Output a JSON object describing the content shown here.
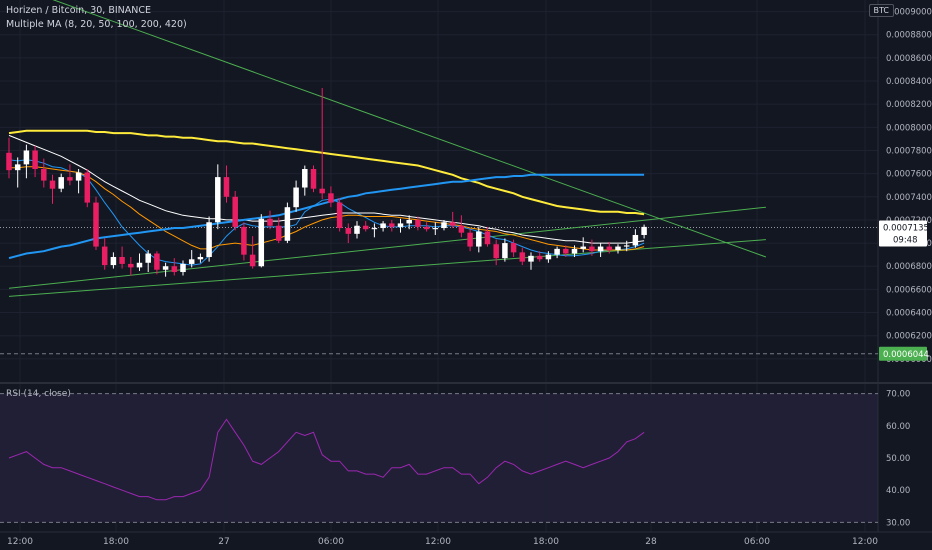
{
  "header": {
    "symbol_line": "Horizen / Bitcoin, 30, BINANCE",
    "indicator_line": "Multiple MA (8, 20, 50, 100, 200, 420)",
    "rsi_label": "RSI (14, close)",
    "currency": "BTC"
  },
  "chart_data": {
    "type": "candlestick",
    "symbol": "Horizen / Bitcoin",
    "interval": "30",
    "exchange": "BINANCE",
    "price_axis": {
      "ticks": [
        "0.0009000",
        "0.0008800",
        "0.0008600",
        "0.0008400",
        "0.0008200",
        "0.0008000",
        "0.0007800",
        "0.0007600",
        "0.0007400",
        "0.0007200",
        "0.0007000",
        "0.0006800",
        "0.0006600",
        "0.0006400",
        "0.0006200",
        "0.0006000"
      ],
      "range": [
        0.00058,
        0.00091
      ]
    },
    "time_axis": {
      "ticks": [
        "12:00",
        "18:00",
        "27",
        "06:00",
        "12:00",
        "18:00",
        "28",
        "06:00",
        "12:00"
      ]
    },
    "last_price": "0.0007135",
    "countdown": "09:48",
    "marked_level": "0.0006044",
    "candles": [
      [
        0.000778,
        0.000791,
        0.000756,
        0.000763
      ],
      [
        0.000763,
        0.000774,
        0.000748,
        0.000768
      ],
      [
        0.000768,
        0.000785,
        0.000756,
        0.00078
      ],
      [
        0.00078,
        0.000784,
        0.000757,
        0.000764
      ],
      [
        0.000764,
        0.000773,
        0.000748,
        0.000754
      ],
      [
        0.000754,
        0.000759,
        0.000734,
        0.000747
      ],
      [
        0.000747,
        0.00076,
        0.000744,
        0.000757
      ],
      [
        0.000757,
        0.000768,
        0.00075,
        0.000754
      ],
      [
        0.000754,
        0.000764,
        0.000743,
        0.000761
      ],
      [
        0.000761,
        0.000764,
        0.000731,
        0.000735
      ],
      [
        0.000735,
        0.00074,
        0.000694,
        0.000697
      ],
      [
        0.000697,
        0.000704,
        0.000677,
        0.000681
      ],
      [
        0.000681,
        0.000692,
        0.000678,
        0.000688
      ],
      [
        0.000688,
        0.000697,
        0.000678,
        0.000682
      ],
      [
        0.000682,
        0.000688,
        0.000672,
        0.000679
      ],
      [
        0.000679,
        0.000691,
        0.000676,
        0.000683
      ],
      [
        0.000683,
        0.000694,
        0.000675,
        0.000691
      ],
      [
        0.000691,
        0.000693,
        0.000673,
        0.000677
      ],
      [
        0.000677,
        0.000683,
        0.000671,
        0.00068
      ],
      [
        0.00068,
        0.000687,
        0.000672,
        0.000675
      ],
      [
        0.000675,
        0.000685,
        0.000672,
        0.000682
      ],
      [
        0.000682,
        0.000694,
        0.000679,
        0.000686
      ],
      [
        0.000686,
        0.000691,
        0.000683,
        0.000688
      ],
      [
        0.000688,
        0.000723,
        0.000684,
        0.000718
      ],
      [
        0.000718,
        0.000768,
        0.000712,
        0.000757
      ],
      [
        0.000757,
        0.000767,
        0.000735,
        0.00074
      ],
      [
        0.00074,
        0.000745,
        0.000711,
        0.000714
      ],
      [
        0.000714,
        0.000718,
        0.000685,
        0.00069
      ],
      [
        0.00069,
        0.000706,
        0.000678,
        0.00068
      ],
      [
        0.00068,
        0.000725,
        0.000679,
        0.000721
      ],
      [
        0.000721,
        0.000728,
        0.000712,
        0.000715
      ],
      [
        0.000715,
        0.000722,
        0.0007,
        0.000702
      ],
      [
        0.000702,
        0.000735,
        0.0007,
        0.000731
      ],
      [
        0.000731,
        0.000754,
        0.000727,
        0.000748
      ],
      [
        0.000748,
        0.000767,
        0.000741,
        0.000764
      ],
      [
        0.000764,
        0.000767,
        0.000744,
        0.000747
      ],
      [
        0.000747,
        0.000834,
        0.000738,
        0.000743
      ],
      [
        0.000743,
        0.000749,
        0.000731,
        0.000735
      ],
      [
        0.000735,
        0.000739,
        0.00071,
        0.000713
      ],
      [
        0.000713,
        0.000717,
        0.0007,
        0.000708
      ],
      [
        0.000708,
        0.000719,
        0.000704,
        0.000715
      ],
      [
        0.000715,
        0.000719,
        0.00071,
        0.000712
      ],
      [
        0.000712,
        0.000717,
        0.000705,
        0.000713
      ],
      [
        0.000713,
        0.000719,
        0.00071,
        0.000717
      ],
      [
        0.000717,
        0.00072,
        0.00071,
        0.000714
      ],
      [
        0.000714,
        0.000721,
        0.000709,
        0.000717
      ],
      [
        0.000717,
        0.000724,
        0.000712,
        0.00072
      ],
      [
        0.00072,
        0.000723,
        0.000711,
        0.000714
      ],
      [
        0.000714,
        0.000718,
        0.00071,
        0.000712
      ],
      [
        0.000712,
        0.000718,
        0.000707,
        0.000713
      ],
      [
        0.000713,
        0.00072,
        0.000711,
        0.000718
      ],
      [
        0.000718,
        0.000727,
        0.000713,
        0.000715
      ],
      [
        0.000715,
        0.000724,
        0.000705,
        0.000709
      ],
      [
        0.000709,
        0.000712,
        0.000693,
        0.000697
      ],
      [
        0.000697,
        0.000714,
        0.000692,
        0.00071
      ],
      [
        0.00071,
        0.000714,
        0.000697,
        0.000699
      ],
      [
        0.000699,
        0.000703,
        0.000681,
        0.000687
      ],
      [
        0.000687,
        0.000704,
        0.000684,
        0.0007
      ],
      [
        0.0007,
        0.000703,
        0.000688,
        0.000692
      ],
      [
        0.000692,
        0.000696,
        0.000681,
        0.000684
      ],
      [
        0.000684,
        0.000692,
        0.000677,
        0.000689
      ],
      [
        0.000689,
        0.000693,
        0.000684,
        0.000686
      ],
      [
        0.000686,
        0.000693,
        0.000683,
        0.00069
      ],
      [
        0.00069,
        0.000697,
        0.000687,
        0.000695
      ],
      [
        0.000695,
        0.000698,
        0.000688,
        0.000691
      ],
      [
        0.000691,
        0.000698,
        0.000688,
        0.000695
      ],
      [
        0.000695,
        0.000705,
        0.000692,
        0.000697
      ],
      [
        0.000697,
        0.000703,
        0.000689,
        0.000693
      ],
      [
        0.000693,
        0.0007,
        0.000688,
        0.000697
      ],
      [
        0.000697,
        0.000701,
        0.000691,
        0.000694
      ],
      [
        0.000694,
        0.000699,
        0.000691,
        0.000697
      ],
      [
        0.000697,
        0.000702,
        0.000693,
        0.000698
      ],
      [
        0.000698,
        0.000712,
        0.000696,
        0.000707
      ],
      [
        0.000707,
        0.000716,
        0.000704,
        0.000714
      ]
    ],
    "moving_averages": [
      {
        "period": 8,
        "color": "#2196f3",
        "values": [
          0.000772,
          0.000771,
          0.000772,
          0.000771,
          0.000769,
          0.000766,
          0.000765,
          0.000762,
          0.000761,
          0.000756,
          0.000746,
          0.000735,
          0.000725,
          0.000714,
          0.000706,
          0.000698,
          0.000691,
          0.000686,
          0.000684,
          0.000683,
          0.000682,
          0.000681,
          0.000682,
          0.000689,
          0.000697,
          0.000706,
          0.000713,
          0.000717,
          0.000715,
          0.000714,
          0.000714,
          0.000714,
          0.000714,
          0.000716,
          0.000727,
          0.000732,
          0.000737,
          0.000738,
          0.000735,
          0.00073,
          0.000726,
          0.000722,
          0.000718,
          0.000715,
          0.000714,
          0.000714,
          0.000715,
          0.000715,
          0.000715,
          0.000714,
          0.000715,
          0.000715,
          0.000714,
          0.000712,
          0.00071,
          0.000707,
          0.000704,
          0.000703,
          0.0007,
          0.000697,
          0.000694,
          0.000692,
          0.000691,
          0.00069,
          0.000689,
          0.000689,
          0.00069,
          0.000691,
          0.000693,
          0.000694,
          0.000694,
          0.000695,
          0.000697,
          0.0007
        ]
      },
      {
        "period": 20,
        "color": "#ff9800",
        "values": [
          0.000765,
          0.000765,
          0.000766,
          0.000766,
          0.000765,
          0.000764,
          0.000763,
          0.000762,
          0.000761,
          0.000758,
          0.000753,
          0.000747,
          0.000742,
          0.000736,
          0.000731,
          0.000725,
          0.00072,
          0.000715,
          0.00071,
          0.000706,
          0.000702,
          0.000698,
          0.000695,
          0.000695,
          0.000698,
          0.000699,
          0.0007,
          0.000699,
          0.000698,
          0.0007,
          0.000702,
          0.000704,
          0.000707,
          0.00071,
          0.000714,
          0.000717,
          0.00072,
          0.000722,
          0.000723,
          0.000724,
          0.000724,
          0.000723,
          0.000723,
          0.000723,
          0.000723,
          0.000722,
          0.000721,
          0.00072,
          0.000719,
          0.000718,
          0.000717,
          0.000716,
          0.000715,
          0.000713,
          0.000712,
          0.000711,
          0.00071,
          0.000708,
          0.000707,
          0.000705,
          0.000703,
          0.000701,
          0.000699,
          0.000698,
          0.000697,
          0.000696,
          0.000695,
          0.000694,
          0.000694,
          0.000694,
          0.000694,
          0.000694,
          0.000695,
          0.000697
        ]
      },
      {
        "period": 50,
        "color": "#ffffff",
        "values": [
          0.000793,
          0.00079,
          0.000787,
          0.000784,
          0.000781,
          0.000778,
          0.000775,
          0.000771,
          0.000767,
          0.000763,
          0.000758,
          0.000753,
          0.000749,
          0.000745,
          0.000741,
          0.000737,
          0.000734,
          0.000731,
          0.000728,
          0.000726,
          0.000724,
          0.000723,
          0.000722,
          0.000721,
          0.000721,
          0.00072,
          0.00072,
          0.00072,
          0.000719,
          0.000719,
          0.000719,
          0.000719,
          0.00072,
          0.000721,
          0.000722,
          0.000723,
          0.000724,
          0.000725,
          0.000726,
          0.000726,
          0.000726,
          0.000726,
          0.000726,
          0.000725,
          0.000724,
          0.000724,
          0.000723,
          0.000722,
          0.000721,
          0.00072,
          0.000719,
          0.000718,
          0.000717,
          0.000716,
          0.000715,
          0.000713,
          0.000712,
          0.00071,
          0.000709,
          0.000707,
          0.000706,
          0.000705,
          0.000704,
          0.000703,
          0.000702,
          0.000702,
          0.000701,
          0.0007,
          0.0007,
          0.0007,
          0.0007,
          0.0007,
          0.000701,
          0.000702
        ]
      },
      {
        "period": 100,
        "color": "#ffeb3b",
        "values": [
          0.000795,
          0.000796,
          0.000797,
          0.000797,
          0.000797,
          0.000797,
          0.000797,
          0.000797,
          0.000797,
          0.000797,
          0.000796,
          0.000796,
          0.000795,
          0.000795,
          0.000795,
          0.000794,
          0.000793,
          0.000793,
          0.000792,
          0.000792,
          0.000791,
          0.000791,
          0.00079,
          0.000789,
          0.000788,
          0.000788,
          0.000787,
          0.000786,
          0.000786,
          0.000785,
          0.000784,
          0.000783,
          0.000782,
          0.000781,
          0.00078,
          0.000779,
          0.000778,
          0.000777,
          0.000776,
          0.000775,
          0.000774,
          0.000773,
          0.000772,
          0.000771,
          0.00077,
          0.000769,
          0.000768,
          0.000767,
          0.000765,
          0.000763,
          0.000761,
          0.000759,
          0.000756,
          0.000754,
          0.000752,
          0.000749,
          0.000747,
          0.000745,
          0.000743,
          0.00074,
          0.000738,
          0.000736,
          0.000734,
          0.000732,
          0.000731,
          0.00073,
          0.000729,
          0.000728,
          0.000727,
          0.000727,
          0.000727,
          0.000726,
          0.000726,
          0.000725
        ]
      },
      {
        "period": 200,
        "color": "#2196f3",
        "values": [
          0.000687,
          0.000689,
          0.000691,
          0.000692,
          0.000693,
          0.000695,
          0.000697,
          0.000698,
          0.0007,
          0.000702,
          0.000704,
          0.000705,
          0.000706,
          0.000707,
          0.000708,
          0.000709,
          0.00071,
          0.000711,
          0.000712,
          0.000713,
          0.000713,
          0.000714,
          0.000715,
          0.000716,
          0.000717,
          0.000718,
          0.000719,
          0.00072,
          0.000721,
          0.000722,
          0.000723,
          0.000724,
          0.000726,
          0.000728,
          0.00073,
          0.000732,
          0.000734,
          0.000736,
          0.000738,
          0.00074,
          0.000741,
          0.000743,
          0.000744,
          0.000745,
          0.000746,
          0.000747,
          0.000748,
          0.000749,
          0.00075,
          0.000751,
          0.000752,
          0.000753,
          0.000753,
          0.000754,
          0.000755,
          0.000756,
          0.000757,
          0.000757,
          0.000758,
          0.000758,
          0.000759,
          0.000759,
          0.000759,
          0.000759,
          0.000759,
          0.000759,
          0.000759,
          0.000759,
          0.000759,
          0.000759,
          0.000759,
          0.000759,
          0.000759,
          0.000759
        ]
      }
    ],
    "trendlines": [
      {
        "name": "descending-resistance",
        "color": "#4caf50",
        "from": [
          0,
          0.000924
        ],
        "to": [
          87,
          0.000688
        ]
      },
      {
        "name": "ascending-support-upper",
        "color": "#4caf50",
        "from": [
          0,
          0.000661
        ],
        "to": [
          87,
          0.000731
        ]
      },
      {
        "name": "ascending-support-lower",
        "color": "#4caf50",
        "from": [
          0,
          0.000654
        ],
        "to": [
          87,
          0.000703
        ]
      }
    ],
    "rsi": {
      "period": 14,
      "source": "close",
      "axis_ticks": [
        "70.00",
        "60.00",
        "50.00",
        "40.00",
        "30.00"
      ],
      "range": [
        27,
        73
      ],
      "bands": [
        70,
        30
      ],
      "values": [
        50,
        51,
        52,
        50,
        48,
        47,
        47,
        46,
        45,
        44,
        43,
        42,
        41,
        40,
        39,
        38,
        38,
        37,
        37,
        38,
        38,
        39,
        40,
        44,
        58,
        62,
        58,
        54,
        49,
        48,
        50,
        52,
        55,
        58,
        57,
        58,
        51,
        49,
        49,
        46,
        46,
        45,
        45,
        44,
        47,
        47,
        48,
        45,
        45,
        46,
        47,
        47,
        45,
        45,
        42,
        44,
        47,
        49,
        48,
        46,
        45,
        46,
        47,
        48,
        49,
        48,
        47,
        48,
        49,
        50,
        52,
        55,
        56,
        58
      ]
    }
  }
}
